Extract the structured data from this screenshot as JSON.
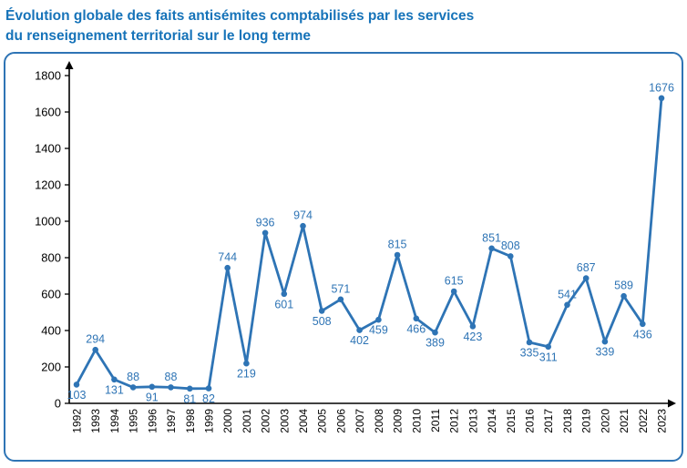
{
  "title": {
    "line1": "Évolution globale des faits antisémites comptabilisés par les services",
    "line2": "du renseignement territorial sur le long terme"
  },
  "colors": {
    "accent": "#2e74b5",
    "title": "#1673b9",
    "border": "#2e74b5",
    "axis": "#000000",
    "tick_label": "#000000",
    "background": "#ffffff"
  },
  "chart_data": {
    "type": "line",
    "title": "Évolution globale des faits antisémites comptabilisés par les services du renseignement territorial sur le long terme",
    "xlabel": "",
    "ylabel": "",
    "x": [
      1992,
      1993,
      1994,
      1995,
      1996,
      1997,
      1998,
      1999,
      2000,
      2001,
      2002,
      2003,
      2004,
      2005,
      2006,
      2007,
      2008,
      2009,
      2010,
      2011,
      2012,
      2013,
      2014,
      2015,
      2016,
      2017,
      2018,
      2019,
      2020,
      2021,
      2022,
      2023
    ],
    "values": [
      103,
      294,
      131,
      88,
      91,
      88,
      81,
      82,
      744,
      219,
      936,
      601,
      974,
      508,
      571,
      402,
      459,
      815,
      466,
      389,
      615,
      423,
      851,
      808,
      335,
      311,
      541,
      687,
      339,
      589,
      436,
      1676
    ],
    "label_positions": [
      "below",
      "above",
      "below",
      "above",
      "below",
      "above",
      "below",
      "below",
      "above",
      "below",
      "above",
      "below",
      "above",
      "below",
      "above",
      "below",
      "below",
      "above",
      "below",
      "below",
      "above",
      "below",
      "above",
      "above",
      "below",
      "below",
      "above",
      "above",
      "below",
      "above",
      "below",
      "above"
    ],
    "ylim": [
      0,
      1800
    ],
    "ytick_step": 200,
    "grid": false,
    "legend": null,
    "series_color": "#2e74b5",
    "marker": "circle",
    "axis_arrows": true
  }
}
